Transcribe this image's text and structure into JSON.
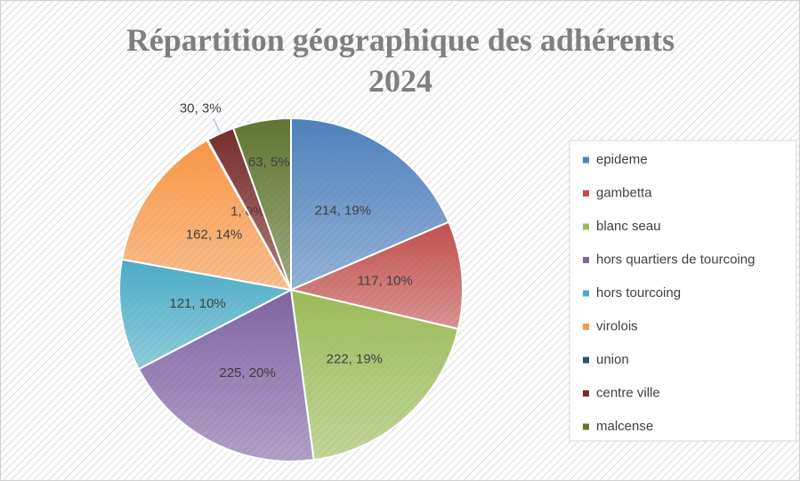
{
  "chart_data": {
    "type": "pie",
    "title": "Répartition géographique des adhérents 2024",
    "categories": [
      "epideme",
      "gambetta",
      "blanc seau",
      "hors quartiers de tourcoing",
      "hors tourcoing",
      "virolois",
      "union",
      "centre ville",
      "malcense"
    ],
    "values": [
      214,
      117,
      222,
      225,
      121,
      162,
      1,
      30,
      63
    ],
    "value_labels": [
      "214, 19%",
      "117, 10%",
      "222, 19%",
      "225, 20%",
      "121, 10%",
      "162, 14%",
      "1, 0%",
      "30, 3%",
      "63, 5%"
    ],
    "colors": [
      "#4f81bd",
      "#c0504d",
      "#9bbb59",
      "#8064a2",
      "#4bacc6",
      "#f79646",
      "#2c4d75",
      "#772c2a",
      "#5f7530"
    ],
    "legend": "right"
  }
}
